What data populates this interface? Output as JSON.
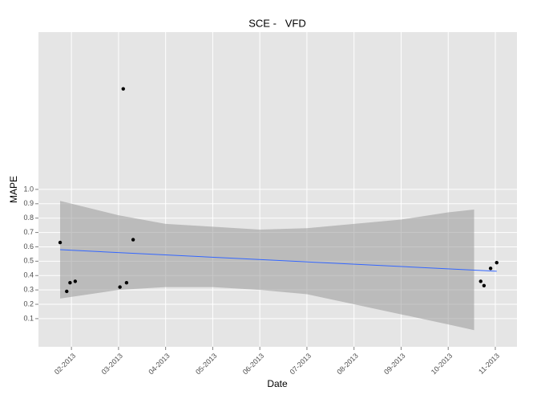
{
  "chart_data": {
    "type": "scatter",
    "title": "SCE -   VFD",
    "x_label": "Date",
    "y_label": "MAPE",
    "xlim": [
      1.3,
      11.46
    ],
    "ylim": [
      -0.096,
      2.095
    ],
    "xticks": [
      {
        "value": 2,
        "label": "02-2013"
      },
      {
        "value": 3,
        "label": "03-2013"
      },
      {
        "value": 4,
        "label": "04-2013"
      },
      {
        "value": 5,
        "label": "05-2013"
      },
      {
        "value": 6,
        "label": "06-2013"
      },
      {
        "value": 7,
        "label": "07-2013"
      },
      {
        "value": 8,
        "label": "08-2013"
      },
      {
        "value": 9,
        "label": "09-2013"
      },
      {
        "value": 10,
        "label": "10-2013"
      },
      {
        "value": 11,
        "label": "11-2013"
      }
    ],
    "yticks": [
      0.1,
      0.2,
      0.3,
      0.4,
      0.5,
      0.6,
      0.7,
      0.8,
      0.9,
      {
        "value": 1,
        "label": "1.0"
      }
    ],
    "grid": true,
    "points": {
      "color": "#000000",
      "x": [
        1.76,
        1.9,
        1.97,
        2.08,
        3.03,
        3.1,
        3.17,
        3.31,
        10.69,
        10.76,
        10.9,
        11.03
      ],
      "values": [
        0.63,
        0.29,
        0.35,
        0.36,
        0.32,
        1.7,
        0.35,
        0.65,
        0.36,
        0.33,
        0.45,
        0.49
      ]
    },
    "trend": {
      "color": "#3366ff",
      "x": [
        1.76,
        11.03
      ],
      "values": [
        0.58,
        0.43
      ]
    },
    "band": {
      "color": "#999999",
      "x": [
        1.76,
        3,
        4,
        5,
        6,
        7,
        8,
        9,
        10,
        10.55
      ],
      "upper": [
        0.92,
        0.82,
        0.76,
        0.74,
        0.72,
        0.73,
        0.76,
        0.79,
        0.84,
        0.86
      ],
      "lower": [
        0.24,
        0.3,
        0.32,
        0.32,
        0.3,
        0.27,
        0.2,
        0.13,
        0.06,
        0.02
      ]
    }
  }
}
